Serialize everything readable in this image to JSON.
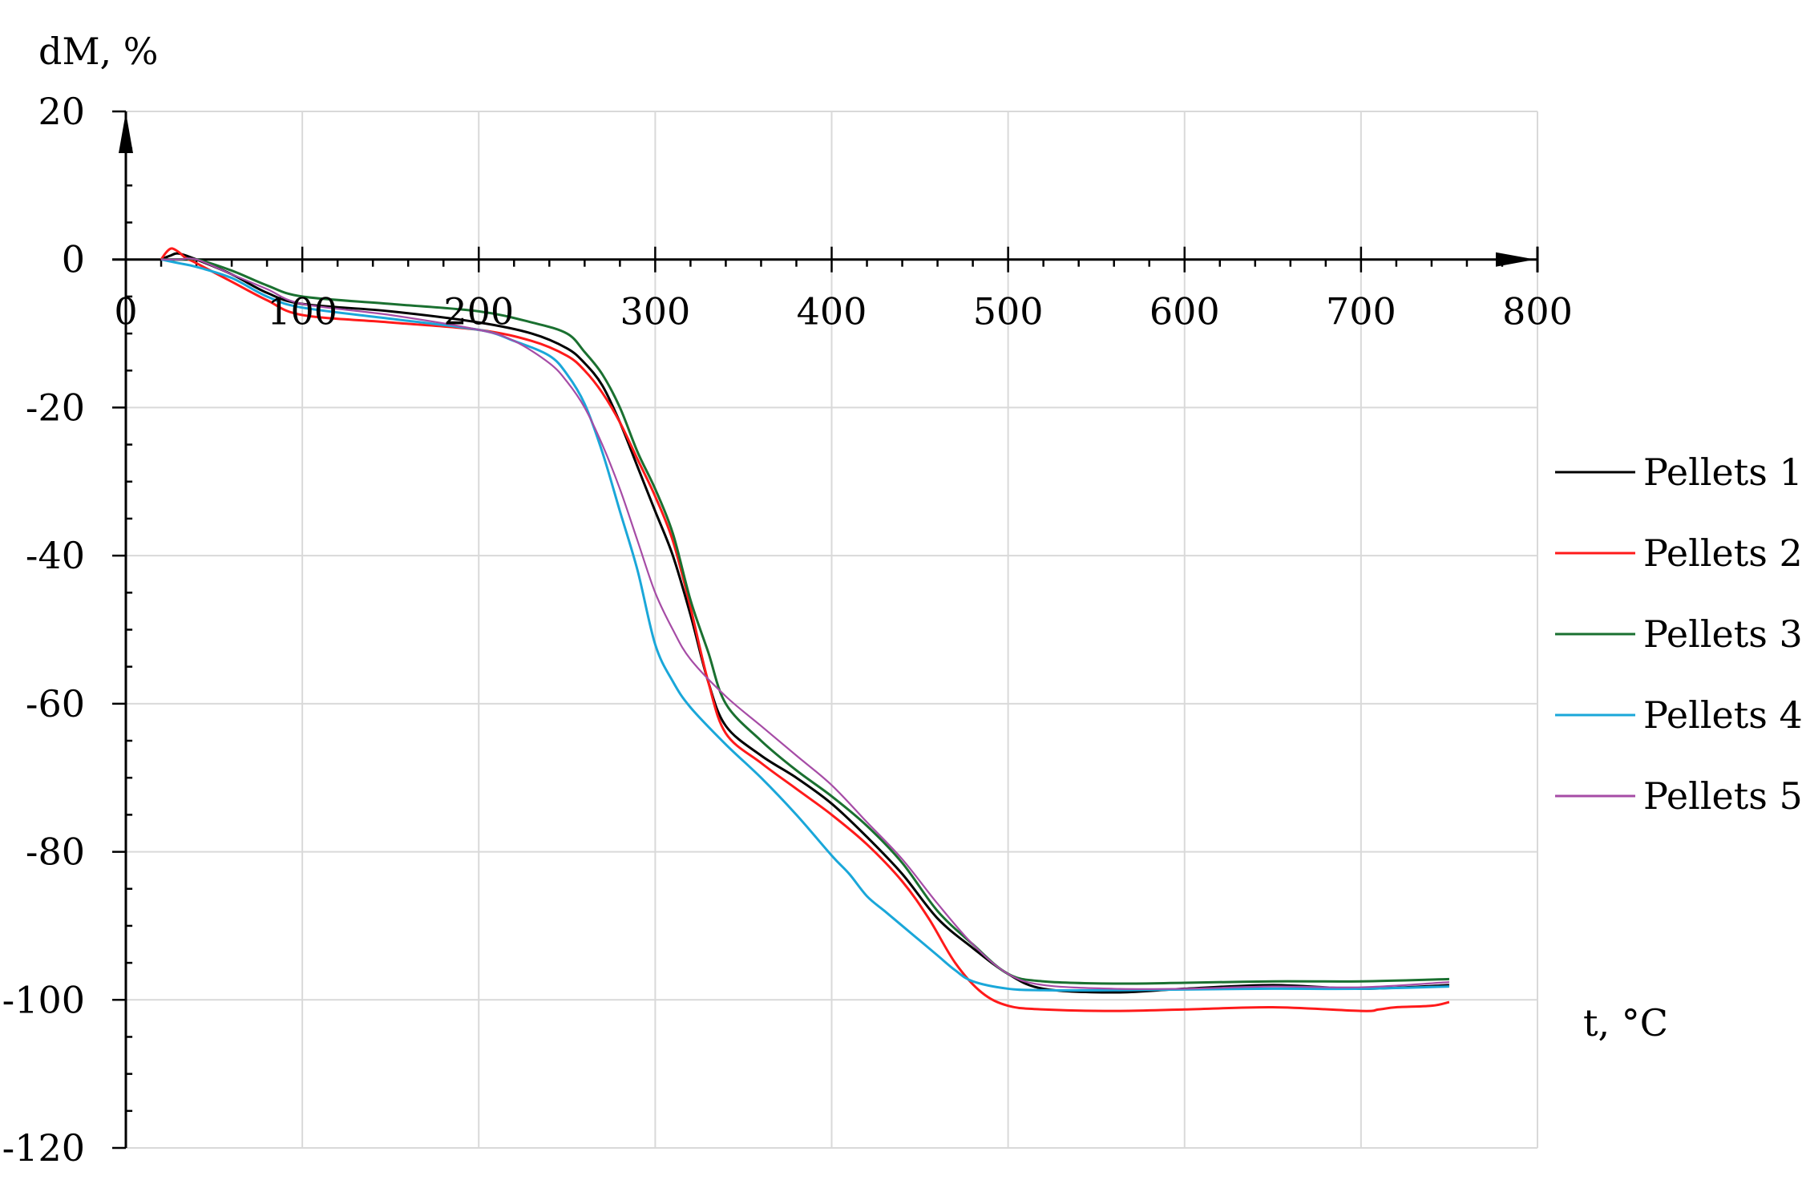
{
  "chart_data": {
    "type": "line",
    "ylabel": "dM, %",
    "xlabel": "t, °C",
    "xlim": [
      0,
      800
    ],
    "ylim": [
      -120,
      20
    ],
    "x_ticks": [
      0,
      100,
      200,
      300,
      400,
      500,
      600,
      700,
      800
    ],
    "y_ticks": [
      20,
      0,
      -20,
      -40,
      -60,
      -80,
      -100,
      -120
    ],
    "x_tick_labels": [
      "0",
      "100",
      "200",
      "300",
      "400",
      "500",
      "600",
      "700",
      "800"
    ],
    "y_tick_labels": [
      "20",
      "0",
      "-20",
      "-40",
      "-60",
      "-80",
      "-100",
      "-120"
    ],
    "grid": true,
    "legend_position": "right",
    "series": [
      {
        "name": "Pellets 1",
        "color": "#000000",
        "x": [
          20,
          25,
          30,
          40,
          60,
          80,
          100,
          150,
          200,
          230,
          250,
          260,
          270,
          280,
          290,
          300,
          310,
          320,
          330,
          340,
          360,
          380,
          400,
          420,
          440,
          460,
          480,
          500,
          520,
          560,
          600,
          650,
          700,
          750
        ],
        "y": [
          0,
          0.5,
          0.8,
          0,
          -2,
          -4.5,
          -6,
          -7,
          -8.5,
          -10,
          -12,
          -14,
          -17,
          -22,
          -28,
          -34,
          -40,
          -48,
          -57,
          -63,
          -67,
          -70,
          -73.5,
          -78,
          -83,
          -89,
          -93,
          -96.5,
          -98.5,
          -99,
          -98.5,
          -98,
          -98.5,
          -98
        ]
      },
      {
        "name": "Pellets 2",
        "color": "#ff1a1a",
        "x": [
          20,
          23,
          26,
          30,
          34,
          40,
          60,
          80,
          100,
          150,
          200,
          230,
          250,
          260,
          270,
          280,
          290,
          300,
          310,
          320,
          330,
          340,
          360,
          380,
          400,
          420,
          440,
          455,
          470,
          485,
          500,
          520,
          560,
          600,
          650,
          700,
          710,
          720,
          740,
          750
        ],
        "y": [
          0,
          1,
          1.5,
          1,
          0.2,
          -0.5,
          -3,
          -5.5,
          -7.5,
          -8.5,
          -9.5,
          -11,
          -13,
          -15,
          -18,
          -22,
          -27,
          -32,
          -38,
          -47,
          -57,
          -64,
          -68,
          -71.5,
          -75,
          -79,
          -84,
          -89,
          -95,
          -99,
          -100.8,
          -101.3,
          -101.5,
          -101.3,
          -101,
          -101.5,
          -101.3,
          -101,
          -100.8,
          -100.3
        ]
      },
      {
        "name": "Pellets 3",
        "color": "#1a7030",
        "x": [
          20,
          30,
          40,
          60,
          80,
          100,
          150,
          200,
          230,
          250,
          260,
          270,
          280,
          290,
          300,
          310,
          320,
          330,
          340,
          360,
          380,
          400,
          420,
          440,
          460,
          480,
          500,
          520,
          560,
          600,
          650,
          700,
          750
        ],
        "y": [
          0,
          0,
          0,
          -1.5,
          -3.5,
          -5,
          -6,
          -7,
          -8.5,
          -10,
          -12.5,
          -15.5,
          -20,
          -26,
          -31,
          -37,
          -46,
          -53,
          -60,
          -65,
          -69,
          -72.5,
          -76.5,
          -81.5,
          -88,
          -92.5,
          -96.5,
          -97.5,
          -97.8,
          -97.7,
          -97.5,
          -97.5,
          -97.2
        ]
      },
      {
        "name": "Pellets 4",
        "color": "#1aa7d9",
        "x": [
          20,
          30,
          40,
          60,
          80,
          100,
          150,
          200,
          220,
          240,
          250,
          260,
          270,
          280,
          290,
          300,
          310,
          320,
          340,
          360,
          380,
          400,
          410,
          420,
          430,
          440,
          450,
          460,
          470,
          480,
          500,
          520,
          560,
          600,
          650,
          700,
          750
        ],
        "y": [
          0,
          -0.5,
          -1,
          -2.5,
          -5,
          -6.5,
          -8,
          -9.5,
          -11,
          -13,
          -15.5,
          -19.5,
          -26,
          -34,
          -42,
          -52,
          -57,
          -60.5,
          -65.5,
          -70,
          -75,
          -80.5,
          -83,
          -86,
          -88,
          -90,
          -92,
          -94,
          -96,
          -97.5,
          -98.5,
          -98.7,
          -98.7,
          -98.6,
          -98.5,
          -98.5,
          -98.2
        ]
      },
      {
        "name": "Pellets 5",
        "color": "#a64ca6",
        "x": [
          20,
          30,
          40,
          60,
          80,
          100,
          150,
          200,
          220,
          240,
          250,
          260,
          270,
          280,
          290,
          300,
          310,
          320,
          340,
          360,
          380,
          400,
          420,
          440,
          460,
          480,
          500,
          520,
          560,
          600,
          650,
          700,
          750
        ],
        "y": [
          0,
          0,
          0,
          -2,
          -4,
          -6,
          -7.5,
          -9.5,
          -11,
          -14,
          -16.5,
          -20,
          -25,
          -31,
          -38,
          -45,
          -50,
          -54,
          -59,
          -63,
          -67,
          -71,
          -76,
          -81,
          -87,
          -92.5,
          -96.5,
          -98,
          -98.5,
          -98.5,
          -98.2,
          -98.3,
          -97.6
        ]
      }
    ]
  }
}
